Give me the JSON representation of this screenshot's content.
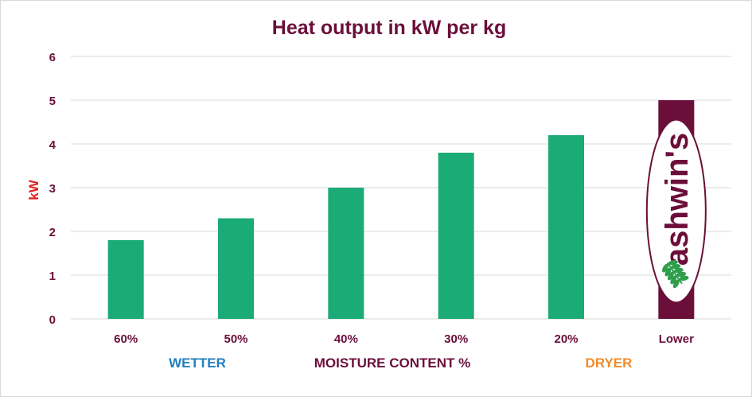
{
  "colors": {
    "title": "#6b0f3a",
    "tick": "#6b0f3a",
    "ylabel": "#e02020",
    "bar": "#1aab77",
    "grid": "#d9d9d9",
    "wetter": "#1f7fc0",
    "dryer": "#f28a2c",
    "moisture": "#6b0f3a",
    "logo_bg": "#6b0f3a",
    "logo_oval": "#ffffff",
    "logo_text": "#6b0f3a",
    "logo_leaf": "#2e9e4a"
  },
  "annotations": {
    "wetter": "WETTER",
    "moisture": "MOISTURE CONTENT %",
    "dryer": "DRYER"
  },
  "logo": {
    "text": "ashwin's",
    "icon": "leaf-icon"
  },
  "chart_data": {
    "type": "bar",
    "title": "Heat output in kW per kg",
    "xlabel": "",
    "ylabel": "kW",
    "categories": [
      "60%",
      "50%",
      "40%",
      "30%",
      "20%",
      "Lower"
    ],
    "values": [
      1.8,
      2.3,
      3.0,
      3.8,
      4.2,
      5.0
    ],
    "yticks": [
      0,
      1,
      2,
      3,
      4,
      5,
      6
    ],
    "ylim": [
      0,
      6
    ],
    "grid": true,
    "legend": "none"
  }
}
